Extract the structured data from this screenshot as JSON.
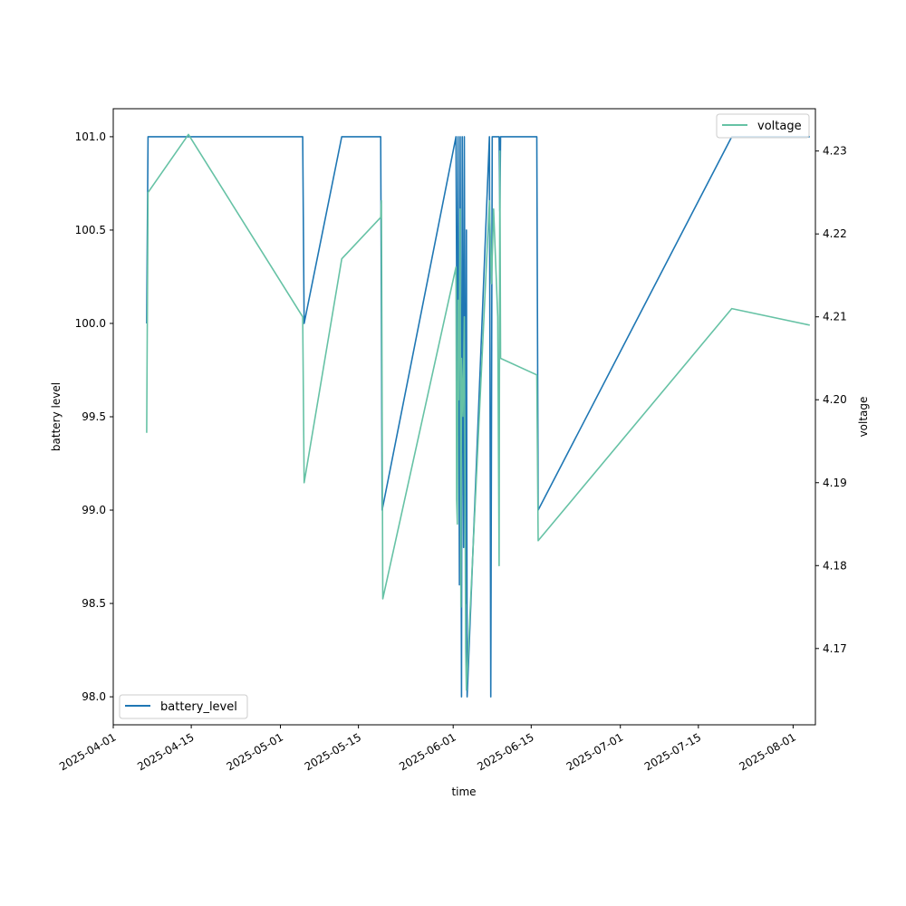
{
  "chart_data": {
    "type": "line",
    "xlabel": "time",
    "ylabel": "battery level",
    "y2label": "voltage",
    "x_ticks": [
      "2025-04-01",
      "2025-04-15",
      "2025-05-01",
      "2025-05-15",
      "2025-06-01",
      "2025-06-15",
      "2025-07-01",
      "2025-07-15",
      "2025-08-01"
    ],
    "xlim": [
      "2025-04-01",
      "2025-08-05"
    ],
    "ylim": [
      97.85,
      101.15
    ],
    "y_ticks": [
      "98.0",
      "98.5",
      "99.0",
      "99.5",
      "100.0",
      "100.5",
      "101.0"
    ],
    "y2lim": [
      4.1608,
      4.2351
    ],
    "y2_ticks": [
      "4.17",
      "4.18",
      "4.19",
      "4.20",
      "4.21",
      "4.22",
      "4.23"
    ],
    "grid": false,
    "series": [
      {
        "name": "battery_level",
        "axis": "left",
        "color": "#1f77b4",
        "legend_position": "lower-left",
        "points": [
          [
            "2025-04-07 00:00",
            100
          ],
          [
            "2025-04-07 06:00",
            101
          ],
          [
            "2025-05-05 00:00",
            101
          ],
          [
            "2025-05-05 06:00",
            100
          ],
          [
            "2025-05-12 00:00",
            101
          ],
          [
            "2025-05-19 00:00",
            101
          ],
          [
            "2025-05-19 06:00",
            99
          ],
          [
            "2025-06-01 12:00",
            101
          ],
          [
            "2025-06-01 18:00",
            99.4
          ],
          [
            "2025-06-01 21:00",
            101
          ],
          [
            "2025-06-02 03:00",
            98.6
          ],
          [
            "2025-06-02 06:00",
            101
          ],
          [
            "2025-06-02 12:00",
            98
          ],
          [
            "2025-06-02 15:00",
            101
          ],
          [
            "2025-06-02 21:00",
            98.8
          ],
          [
            "2025-06-03 00:00",
            101
          ],
          [
            "2025-06-03 06:00",
            98.5
          ],
          [
            "2025-06-03 09:00",
            100.5
          ],
          [
            "2025-06-03 12:00",
            98
          ],
          [
            "2025-06-07 12:00",
            101
          ],
          [
            "2025-06-07 18:00",
            98
          ],
          [
            "2025-06-08 00:00",
            101
          ],
          [
            "2025-06-09 06:00",
            101
          ],
          [
            "2025-06-09 09:00",
            100.6
          ],
          [
            "2025-06-09 12:00",
            101
          ],
          [
            "2025-06-16 00:00",
            101
          ],
          [
            "2025-06-16 06:00",
            99
          ],
          [
            "2025-07-21 00:00",
            101
          ],
          [
            "2025-08-04 00:00",
            101
          ]
        ]
      },
      {
        "name": "voltage",
        "axis": "right",
        "color": "#66c2a5",
        "legend_position": "upper-right",
        "points": [
          [
            "2025-04-07 00:00",
            4.196
          ],
          [
            "2025-04-07 06:00",
            4.225
          ],
          [
            "2025-04-14 12:00",
            4.232
          ],
          [
            "2025-05-05 00:00",
            4.21
          ],
          [
            "2025-05-05 06:00",
            4.19
          ],
          [
            "2025-05-12 00:00",
            4.217
          ],
          [
            "2025-05-19 00:00",
            4.222
          ],
          [
            "2025-05-19 03:00",
            4.224
          ],
          [
            "2025-05-19 09:00",
            4.176
          ],
          [
            "2025-06-01 12:00",
            4.216
          ],
          [
            "2025-06-01 15:00",
            4.188
          ],
          [
            "2025-06-01 18:00",
            4.185
          ],
          [
            "2025-06-01 21:00",
            4.212
          ],
          [
            "2025-06-02 00:00",
            4.2
          ],
          [
            "2025-06-02 06:00",
            4.223
          ],
          [
            "2025-06-02 09:00",
            4.175
          ],
          [
            "2025-06-02 12:00",
            4.205
          ],
          [
            "2025-06-02 18:00",
            4.198
          ],
          [
            "2025-06-03 00:00",
            4.21
          ],
          [
            "2025-06-03 06:00",
            4.17
          ],
          [
            "2025-06-03 09:00",
            4.165
          ],
          [
            "2025-06-07 12:00",
            4.224
          ],
          [
            "2025-06-07 21:00",
            4.214
          ],
          [
            "2025-06-08 06:00",
            4.223
          ],
          [
            "2025-06-09 00:00",
            4.21
          ],
          [
            "2025-06-09 06:00",
            4.18
          ],
          [
            "2025-06-09 09:00",
            4.23
          ],
          [
            "2025-06-09 12:00",
            4.205
          ],
          [
            "2025-06-16 00:00",
            4.203
          ],
          [
            "2025-06-16 06:00",
            4.183
          ],
          [
            "2025-07-21 00:00",
            4.211
          ],
          [
            "2025-08-04 00:00",
            4.209
          ]
        ]
      }
    ]
  }
}
